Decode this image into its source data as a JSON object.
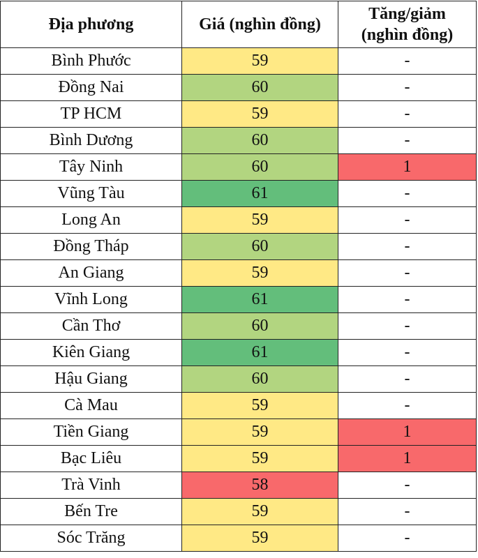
{
  "headers": [
    "Địa phương",
    "Giá (nghìn đồng)",
    "Tăng/giảm (nghìn đồng)"
  ],
  "colors": {
    "59": "#FFE985",
    "60": "#B2D580",
    "61": "#63BE7B",
    "58": "#F8696B",
    "change_up": "#F8696B"
  },
  "rows": [
    {
      "region": "Bình Phước",
      "price": "59",
      "change": "-"
    },
    {
      "region": "Đồng Nai",
      "price": "60",
      "change": "-"
    },
    {
      "region": "TP HCM",
      "price": "59",
      "change": "-"
    },
    {
      "region": "Bình Dương",
      "price": "60",
      "change": "-"
    },
    {
      "region": "Tây Ninh",
      "price": "60",
      "change": "1"
    },
    {
      "region": "Vũng Tàu",
      "price": "61",
      "change": "-"
    },
    {
      "region": "Long An",
      "price": "59",
      "change": "-"
    },
    {
      "region": "Đồng Tháp",
      "price": "60",
      "change": "-"
    },
    {
      "region": "An Giang",
      "price": "59",
      "change": "-"
    },
    {
      "region": "Vĩnh Long",
      "price": "61",
      "change": "-"
    },
    {
      "region": "Cần Thơ",
      "price": "60",
      "change": "-"
    },
    {
      "region": "Kiên Giang",
      "price": "61",
      "change": "-"
    },
    {
      "region": "Hậu Giang",
      "price": "60",
      "change": "-"
    },
    {
      "region": "Cà Mau",
      "price": "59",
      "change": "-"
    },
    {
      "region": "Tiền Giang",
      "price": "59",
      "change": "1"
    },
    {
      "region": "Bạc Liêu",
      "price": "59",
      "change": "1"
    },
    {
      "region": "Trà Vinh",
      "price": "58",
      "change": "-"
    },
    {
      "region": "Bến Tre",
      "price": "59",
      "change": "-"
    },
    {
      "region": "Sóc Trăng",
      "price": "59",
      "change": "-"
    }
  ]
}
